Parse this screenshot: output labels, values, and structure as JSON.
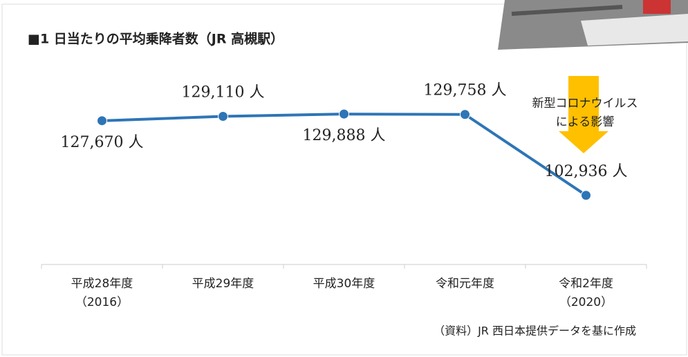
{
  "chart_data": {
    "type": "line",
    "title": "■1 日当たりの平均乗降者数（JR 高槻駅）",
    "categories": [
      "平成28年度\n（2016）",
      "平成29年度",
      "平成30年度",
      "令和元年度",
      "令和2年度\n（2020）"
    ],
    "series": [
      {
        "name": "平均乗降者数",
        "color": "#2e75b6",
        "values": [
          127670,
          129110,
          129888,
          129758,
          102936
        ],
        "value_labels": [
          "127,670 人",
          "129,110 人",
          "129,888 人",
          "129,758 人",
          "102,936 人"
        ]
      }
    ],
    "ylim": [
      80000,
      140000
    ],
    "annotation": "新型コロナウイルス\nによる影響",
    "source": "（資料）JR 西日本提供データを基に作成"
  }
}
